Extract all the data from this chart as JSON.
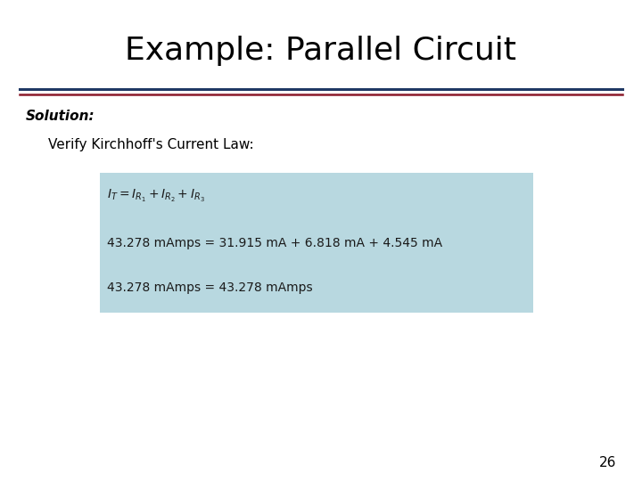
{
  "title": "Example: Parallel Circuit",
  "title_fontsize": 26,
  "title_color": "#000000",
  "separator_line_color_top": "#1f3864",
  "separator_line_color_bottom": "#8b1a2a",
  "solution_label": "Solution:",
  "solution_fontsize": 11,
  "verify_text": "Verify Kirchhoff's Current Law:",
  "verify_fontsize": 11,
  "box_color": "#b8d8e0",
  "line_fontsize": 10,
  "line1_math": "$I_T = I_{R_1} + I_{R_2} + I_{R_3}$",
  "line2_text": "43.278 mAmps = 31.915 mA + 6.818 mA + 4.545 mA",
  "line3_text": "43.278 mAmps = 43.278 mAmps",
  "page_number": "26",
  "page_number_fontsize": 11,
  "background_color": "#ffffff"
}
